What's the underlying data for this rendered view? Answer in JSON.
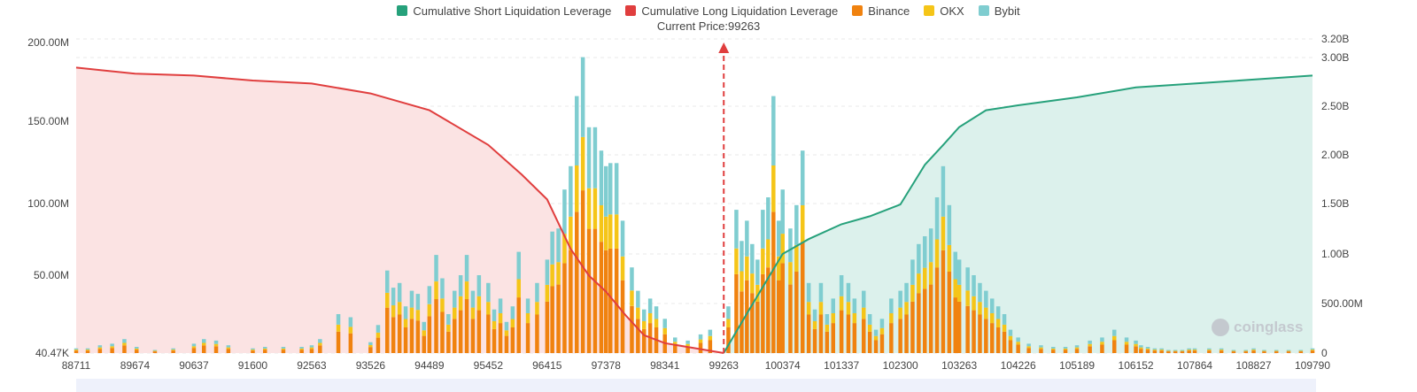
{
  "legend": {
    "items": [
      {
        "label": "Cumulative Short Liquidation Leverage",
        "color": "#26a17b"
      },
      {
        "label": "Cumulative Long Liquidation Leverage",
        "color": "#e03e3e"
      },
      {
        "label": "Binance",
        "color": "#f0820f"
      },
      {
        "label": "OKX",
        "color": "#f5c518"
      },
      {
        "label": "Bybit",
        "color": "#7fcdd0"
      }
    ]
  },
  "current_price_label": "Current Price:99263",
  "watermark": "coinglass",
  "chart_data": {
    "type": "bar",
    "title": "",
    "current_price": 99263,
    "x_tick_labels": [
      "88711",
      "89674",
      "90637",
      "91600",
      "92563",
      "93526",
      "94489",
      "95452",
      "96415",
      "97378",
      "98341",
      "99263",
      "100374",
      "101337",
      "102300",
      "103263",
      "104226",
      "105189",
      "106152",
      "107864",
      "108827",
      "109790"
    ],
    "left_axis": {
      "ticks": [
        "40.47K",
        "50.00M",
        "100.00M",
        "150.00M",
        "200.00M"
      ],
      "max": 200000000
    },
    "right_axis": {
      "ticks": [
        "0",
        "500.00M",
        "1.00B",
        "1.50B",
        "2.00B",
        "2.50B",
        "3.00B",
        "3.20B"
      ],
      "max": 3200000000
    },
    "bar_series_order": [
      "Binance",
      "OKX",
      "Bybit"
    ],
    "bar_x": [
      88711,
      89674,
      90637,
      91600,
      92563,
      93526,
      94489,
      95452,
      96415,
      97378,
      98341,
      99263,
      100374,
      101337,
      102300,
      103263,
      104226,
      105189,
      106152,
      107864,
      108827,
      109790
    ],
    "bars_total_m": [
      [
        88711,
        3
      ],
      [
        88900,
        3
      ],
      [
        89100,
        5
      ],
      [
        89300,
        6
      ],
      [
        89500,
        9
      ],
      [
        89700,
        4
      ],
      [
        90000,
        2
      ],
      [
        90300,
        3
      ],
      [
        90637,
        6
      ],
      [
        90800,
        9
      ],
      [
        91000,
        8
      ],
      [
        91200,
        5
      ],
      [
        91600,
        3
      ],
      [
        91800,
        4
      ],
      [
        92100,
        4
      ],
      [
        92400,
        4
      ],
      [
        92563,
        5
      ],
      [
        92700,
        9
      ],
      [
        93000,
        25
      ],
      [
        93200,
        23
      ],
      [
        93526,
        7
      ],
      [
        93650,
        18
      ],
      [
        93800,
        53
      ],
      [
        93900,
        42
      ],
      [
        94000,
        45
      ],
      [
        94100,
        30
      ],
      [
        94200,
        40
      ],
      [
        94300,
        38
      ],
      [
        94400,
        20
      ],
      [
        94489,
        43
      ],
      [
        94600,
        63
      ],
      [
        94700,
        48
      ],
      [
        94800,
        25
      ],
      [
        94900,
        40
      ],
      [
        95000,
        50
      ],
      [
        95100,
        63
      ],
      [
        95200,
        40
      ],
      [
        95300,
        50
      ],
      [
        95452,
        45
      ],
      [
        95550,
        28
      ],
      [
        95650,
        35
      ],
      [
        95750,
        20
      ],
      [
        95850,
        30
      ],
      [
        95950,
        65
      ],
      [
        96100,
        35
      ],
      [
        96250,
        45
      ],
      [
        96415,
        60
      ],
      [
        96500,
        78
      ],
      [
        96600,
        80
      ],
      [
        96700,
        105
      ],
      [
        96800,
        120
      ],
      [
        96900,
        165
      ],
      [
        97000,
        190
      ],
      [
        97100,
        145
      ],
      [
        97200,
        145
      ],
      [
        97300,
        130
      ],
      [
        97378,
        120
      ],
      [
        97450,
        122
      ],
      [
        97550,
        122
      ],
      [
        97650,
        85
      ],
      [
        97800,
        55
      ],
      [
        97900,
        40
      ],
      [
        98000,
        28
      ],
      [
        98100,
        35
      ],
      [
        98200,
        30
      ],
      [
        98341,
        22
      ],
      [
        98500,
        10
      ],
      [
        98700,
        8
      ],
      [
        98900,
        12
      ],
      [
        99050,
        15
      ],
      [
        99263,
        0
      ],
      [
        99350,
        30
      ],
      [
        99500,
        92
      ],
      [
        99600,
        72
      ],
      [
        99700,
        85
      ],
      [
        99800,
        70
      ],
      [
        99900,
        60
      ],
      [
        100000,
        92
      ],
      [
        100100,
        100
      ],
      [
        100200,
        165
      ],
      [
        100300,
        85
      ],
      [
        100374,
        105
      ],
      [
        100500,
        80
      ],
      [
        100600,
        95
      ],
      [
        100700,
        130
      ],
      [
        100800,
        45
      ],
      [
        100900,
        28
      ],
      [
        101000,
        45
      ],
      [
        101100,
        25
      ],
      [
        101200,
        35
      ],
      [
        101337,
        50
      ],
      [
        101450,
        45
      ],
      [
        101550,
        35
      ],
      [
        101700,
        40
      ],
      [
        101800,
        25
      ],
      [
        101900,
        15
      ],
      [
        102000,
        22
      ],
      [
        102150,
        35
      ],
      [
        102300,
        40
      ],
      [
        102400,
        45
      ],
      [
        102500,
        60
      ],
      [
        102600,
        70
      ],
      [
        102700,
        75
      ],
      [
        102800,
        80
      ],
      [
        102900,
        100
      ],
      [
        103000,
        120
      ],
      [
        103100,
        95
      ],
      [
        103200,
        65
      ],
      [
        103263,
        60
      ],
      [
        103400,
        55
      ],
      [
        103500,
        50
      ],
      [
        103600,
        45
      ],
      [
        103700,
        40
      ],
      [
        103800,
        35
      ],
      [
        103900,
        30
      ],
      [
        104000,
        25
      ],
      [
        104100,
        15
      ],
      [
        104226,
        10
      ],
      [
        104400,
        6
      ],
      [
        104600,
        5
      ],
      [
        104800,
        4
      ],
      [
        105000,
        4
      ],
      [
        105189,
        5
      ],
      [
        105400,
        8
      ],
      [
        105600,
        10
      ],
      [
        105800,
        15
      ],
      [
        106000,
        10
      ],
      [
        106152,
        8
      ],
      [
        106300,
        5
      ],
      [
        106500,
        4
      ],
      [
        106700,
        3
      ],
      [
        106900,
        3
      ],
      [
        107100,
        2
      ],
      [
        107300,
        2
      ],
      [
        107500,
        2
      ],
      [
        107700,
        3
      ],
      [
        107864,
        3
      ],
      [
        108100,
        3
      ],
      [
        108300,
        3
      ],
      [
        108500,
        2
      ],
      [
        108700,
        2
      ],
      [
        108827,
        3
      ],
      [
        109000,
        2
      ],
      [
        109200,
        2
      ],
      [
        109400,
        2
      ],
      [
        109600,
        2
      ],
      [
        109790,
        3
      ]
    ],
    "long_cumulative_b": [
      [
        88711,
        2.88
      ],
      [
        89674,
        2.82
      ],
      [
        90637,
        2.8
      ],
      [
        91600,
        2.75
      ],
      [
        92563,
        2.72
      ],
      [
        93526,
        2.62
      ],
      [
        94489,
        2.45
      ],
      [
        95452,
        2.1
      ],
      [
        96000,
        1.8
      ],
      [
        96415,
        1.55
      ],
      [
        96800,
        1.05
      ],
      [
        97100,
        0.78
      ],
      [
        97378,
        0.62
      ],
      [
        97700,
        0.38
      ],
      [
        98000,
        0.18
      ],
      [
        98341,
        0.1
      ],
      [
        98800,
        0.05
      ],
      [
        99263,
        0.0
      ]
    ],
    "short_cumulative_b": [
      [
        99263,
        0.0
      ],
      [
        99700,
        0.4
      ],
      [
        100374,
        1.0
      ],
      [
        100800,
        1.15
      ],
      [
        101337,
        1.3
      ],
      [
        101800,
        1.38
      ],
      [
        102300,
        1.5
      ],
      [
        102700,
        1.9
      ],
      [
        103000,
        2.1
      ],
      [
        103263,
        2.28
      ],
      [
        103700,
        2.45
      ],
      [
        104226,
        2.5
      ],
      [
        105189,
        2.58
      ],
      [
        106152,
        2.68
      ],
      [
        107864,
        2.72
      ],
      [
        108827,
        2.76
      ],
      [
        109790,
        2.8
      ]
    ]
  }
}
